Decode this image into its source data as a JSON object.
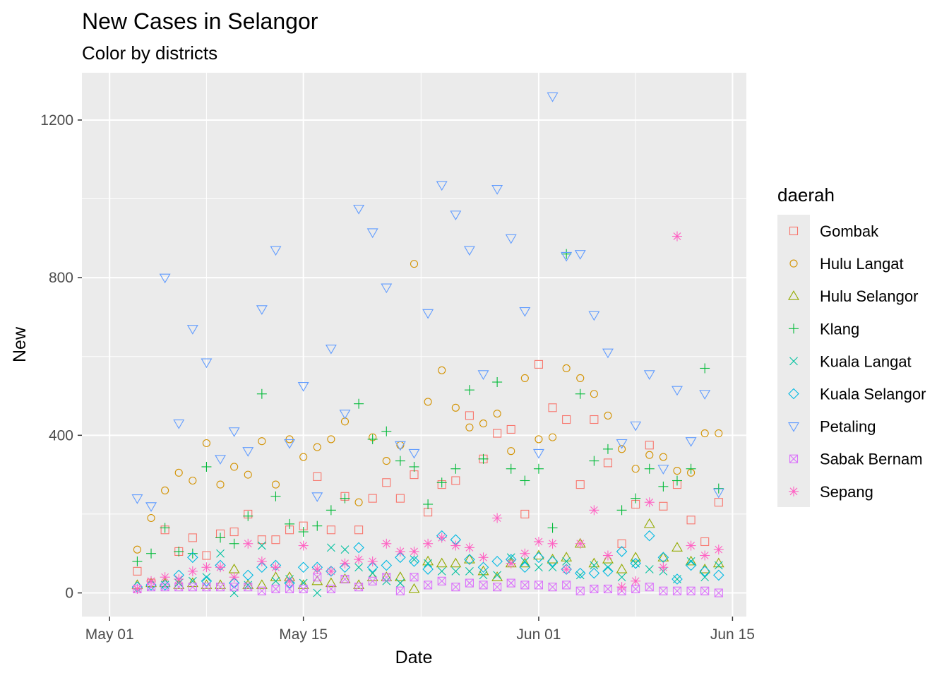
{
  "chart_data": {
    "type": "scatter",
    "title": "New Cases in Selangor",
    "subtitle": "Color by districts",
    "xlabel": "Date",
    "ylabel": "New",
    "x_ticks": [
      {
        "label": "May 01",
        "day": 1
      },
      {
        "label": "May 15",
        "day": 15
      },
      {
        "label": "Jun 01",
        "day": 32
      },
      {
        "label": "Jun 15",
        "day": 46
      }
    ],
    "xlim_day": [
      -1,
      47
    ],
    "y_ticks": [
      0,
      400,
      800,
      1200
    ],
    "ylim": [
      -60,
      1320
    ],
    "grid": true,
    "legend": {
      "title": "daerah",
      "position": "right"
    },
    "x_dates": [
      "2021-05-03",
      "2021-05-04",
      "2021-05-05",
      "2021-05-06",
      "2021-05-07",
      "2021-05-08",
      "2021-05-09",
      "2021-05-10",
      "2021-05-11",
      "2021-05-12",
      "2021-05-13",
      "2021-05-14",
      "2021-05-15",
      "2021-05-16",
      "2021-05-17",
      "2021-05-18",
      "2021-05-19",
      "2021-05-20",
      "2021-05-21",
      "2021-05-22",
      "2021-05-23",
      "2021-05-24",
      "2021-05-25",
      "2021-05-26",
      "2021-05-27",
      "2021-05-28",
      "2021-05-29",
      "2021-05-30",
      "2021-05-31",
      "2021-06-01",
      "2021-06-02",
      "2021-06-03",
      "2021-06-04",
      "2021-06-05",
      "2021-06-06",
      "2021-06-07",
      "2021-06-08",
      "2021-06-09",
      "2021-06-10",
      "2021-06-11",
      "2021-06-12",
      "2021-06-13",
      "2021-06-14"
    ],
    "x_day": [
      3,
      4,
      5,
      6,
      7,
      8,
      9,
      10,
      11,
      12,
      13,
      14,
      15,
      16,
      17,
      18,
      19,
      20,
      21,
      22,
      23,
      24,
      25,
      26,
      27,
      28,
      29,
      30,
      31,
      32,
      33,
      34,
      35,
      36,
      37,
      38,
      39,
      40,
      41,
      42,
      43,
      44,
      45
    ],
    "series": [
      {
        "name": "Gombak",
        "color": "#F8766D",
        "shape": "square",
        "values": [
          55,
          25,
          160,
          105,
          140,
          95,
          150,
          155,
          200,
          135,
          135,
          160,
          170,
          295,
          160,
          245,
          160,
          240,
          280,
          240,
          300,
          205,
          275,
          285,
          450,
          340,
          405,
          415,
          200,
          580,
          470,
          440,
          275,
          440,
          330,
          125,
          225,
          375,
          220,
          275,
          185,
          130,
          230
        ]
      },
      {
        "name": "Hulu Langat",
        "color": "#D39200",
        "shape": "circle",
        "values": [
          110,
          190,
          260,
          305,
          285,
          380,
          275,
          320,
          300,
          385,
          275,
          390,
          345,
          370,
          390,
          435,
          230,
          395,
          335,
          375,
          835,
          485,
          565,
          470,
          420,
          430,
          455,
          360,
          545,
          390,
          395,
          570,
          545,
          505,
          450,
          365,
          315,
          350,
          345,
          310,
          305,
          405,
          405
        ]
      },
      {
        "name": "Hulu Selangor",
        "color": "#93AA00",
        "shape": "triangle",
        "values": [
          20,
          25,
          25,
          20,
          25,
          20,
          20,
          60,
          20,
          20,
          40,
          40,
          20,
          30,
          25,
          35,
          20,
          40,
          40,
          40,
          10,
          80,
          75,
          75,
          85,
          55,
          40,
          75,
          75,
          95,
          85,
          90,
          125,
          75,
          85,
          60,
          90,
          175,
          90,
          115,
          80,
          60,
          75
        ]
      },
      {
        "name": "Klang",
        "color": "#00BA38",
        "shape": "plus",
        "values": [
          80,
          100,
          165,
          105,
          100,
          320,
          140,
          125,
          195,
          505,
          245,
          175,
          155,
          170,
          210,
          240,
          480,
          390,
          410,
          335,
          320,
          225,
          280,
          315,
          515,
          340,
          535,
          315,
          285,
          315,
          165,
          860,
          505,
          335,
          365,
          210,
          240,
          315,
          270,
          285,
          315,
          570,
          265
        ]
      },
      {
        "name": "Kuala Langat",
        "color": "#00C19F",
        "shape": "cross",
        "values": [
          10,
          15,
          20,
          25,
          30,
          40,
          100,
          0,
          20,
          120,
          30,
          35,
          25,
          0,
          115,
          110,
          65,
          50,
          30,
          25,
          85,
          75,
          55,
          55,
          55,
          45,
          45,
          90,
          80,
          65,
          65,
          80,
          45,
          70,
          65,
          40,
          75,
          60,
          55,
          35,
          80,
          40,
          70
        ]
      },
      {
        "name": "Kuala Selangor",
        "color": "#00B9E3",
        "shape": "diamond",
        "values": [
          15,
          20,
          20,
          45,
          90,
          30,
          70,
          25,
          45,
          65,
          70,
          25,
          65,
          65,
          55,
          65,
          115,
          65,
          70,
          90,
          80,
          60,
          145,
          135,
          85,
          65,
          80,
          85,
          65,
          90,
          80,
          60,
          50,
          50,
          55,
          105,
          75,
          145,
          90,
          35,
          70,
          55,
          45
        ]
      },
      {
        "name": "Petaling",
        "color": "#619CFF",
        "shape": "triangle-down",
        "values": [
          240,
          220,
          800,
          430,
          670,
          585,
          340,
          410,
          360,
          720,
          870,
          380,
          525,
          245,
          620,
          455,
          975,
          915,
          775,
          375,
          355,
          710,
          1035,
          960,
          870,
          555,
          1025,
          900,
          715,
          355,
          1260,
          855,
          860,
          705,
          610,
          380,
          425,
          555,
          315,
          515,
          385,
          505,
          255
        ]
      },
      {
        "name": "Sabak Bernam",
        "color": "#DB72FB",
        "shape": "square-cross",
        "values": [
          10,
          15,
          15,
          15,
          15,
          15,
          15,
          15,
          15,
          5,
          10,
          10,
          10,
          40,
          10,
          35,
          15,
          30,
          40,
          5,
          40,
          20,
          30,
          15,
          25,
          20,
          15,
          25,
          20,
          20,
          15,
          20,
          5,
          10,
          10,
          5,
          10,
          15,
          5,
          5,
          5,
          5,
          0
        ]
      },
      {
        "name": "Sepang",
        "color": "#FF61C3",
        "shape": "asterisk",
        "values": [
          10,
          30,
          40,
          35,
          55,
          65,
          65,
          40,
          125,
          80,
          65,
          30,
          120,
          60,
          55,
          75,
          85,
          80,
          125,
          105,
          105,
          125,
          140,
          120,
          115,
          90,
          190,
          75,
          100,
          130,
          125,
          60,
          125,
          210,
          95,
          15,
          30,
          230,
          65,
          905,
          120,
          95,
          110
        ]
      }
    ]
  }
}
